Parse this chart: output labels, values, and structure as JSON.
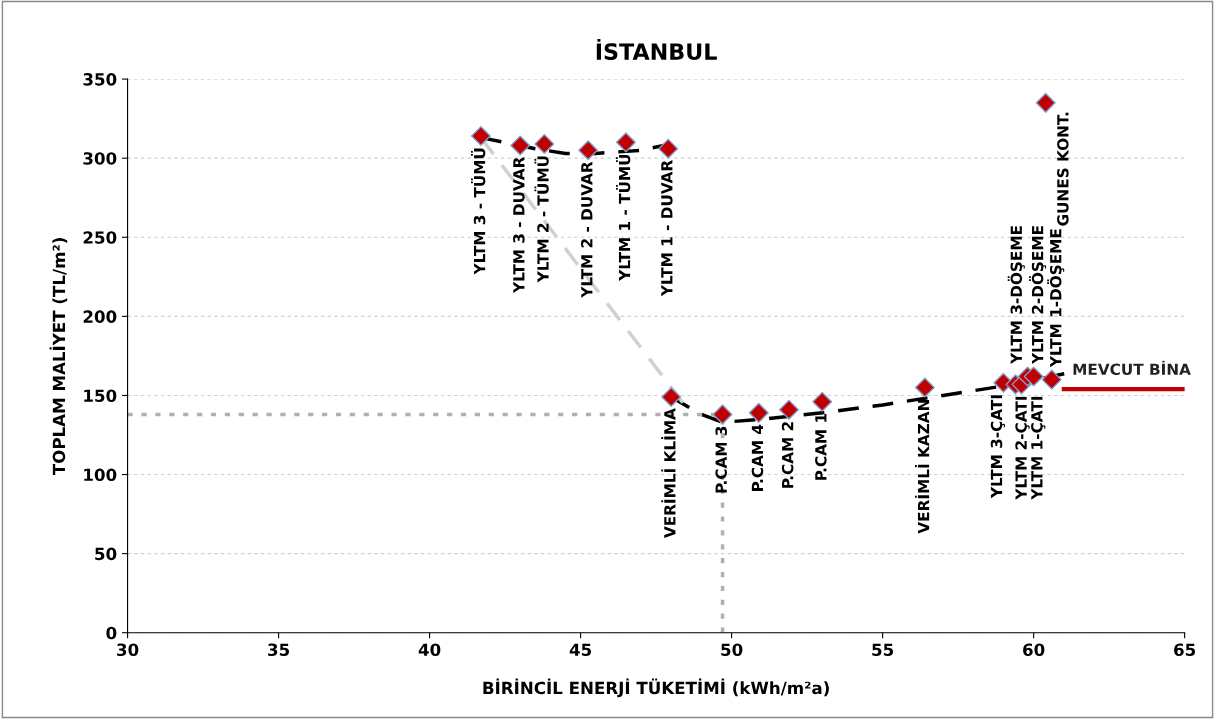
{
  "chart_data": {
    "type": "scatter",
    "title": "İSTANBUL",
    "xlabel": "BİRİNCİL ENERJİ TÜKETİMİ (kWh/m²a)",
    "ylabel": "TOPLAM MALİYET (TL/m²)",
    "xlim": [
      30,
      65
    ],
    "xticks": [
      30,
      35,
      40,
      45,
      50,
      55,
      60,
      65
    ],
    "ylim": [
      0,
      350
    ],
    "yticks": [
      0,
      50,
      100,
      150,
      200,
      250,
      300,
      350
    ],
    "grid": "y",
    "series": [
      {
        "type": "line",
        "color": "#000000",
        "line_style": "dashed",
        "marker": "none",
        "x": [
          41.7,
          43.5,
          44.5,
          45.5,
          47.0,
          48.0
        ],
        "values": [
          313,
          306,
          303,
          303,
          305,
          309
        ]
      },
      {
        "type": "line",
        "color": "#000000",
        "line_style": "dashed",
        "marker": "none",
        "x": [
          48.0,
          49.0,
          49.7,
          51.0,
          53.0,
          55.0,
          57.0,
          59.0,
          61.1
        ],
        "values": [
          149,
          138,
          133,
          135,
          139,
          144,
          150,
          156,
          164
        ]
      },
      {
        "type": "line",
        "color": "#d0d0d0",
        "line_style": "dashed",
        "marker": "none",
        "x": [
          41.7,
          48.6
        ],
        "values": [
          313,
          140
        ]
      },
      {
        "type": "line",
        "color": "#b0b0b0",
        "line_style": "dotted",
        "marker": "none",
        "x": [
          30,
          49.7
        ],
        "values": [
          138,
          138
        ]
      },
      {
        "type": "line",
        "color": "#b0b0b0",
        "line_style": "dotted",
        "marker": "none",
        "x": [
          49.7,
          49.7
        ],
        "values": [
          0,
          138
        ]
      },
      {
        "type": "line",
        "name": "MEVCUT BİNA",
        "color": "#c00000",
        "line_style": "solid",
        "marker": "none",
        "x": [
          61.0,
          65.0
        ],
        "values": [
          154,
          154
        ]
      },
      {
        "color": "#c00000",
        "marker": "diamond",
        "x": [
          41.7,
          43.0,
          43.8,
          45.25,
          46.5,
          47.9,
          48.0,
          49.7,
          50.9,
          51.9,
          53.0,
          56.4,
          59.0,
          59.4,
          59.6,
          59.8,
          60.0,
          60.6,
          60.4
        ],
        "values": [
          314,
          308,
          309,
          305,
          310,
          306,
          149,
          138,
          139,
          141,
          146,
          155,
          158,
          157,
          157,
          162,
          162,
          160,
          335
        ]
      }
    ],
    "annotations": [
      {
        "text": "YLTM 3 - TÜMÜ",
        "x": 41.7,
        "y": 314
      },
      {
        "text": "YLTM 3 - DUVAR",
        "x": 43.0,
        "y": 308
      },
      {
        "text": "YLTM 2 - TÜMÜ",
        "x": 43.8,
        "y": 309
      },
      {
        "text": "YLTM 2 - DUVAR",
        "x": 45.25,
        "y": 305
      },
      {
        "text": "YLTM 1 - TÜMÜ",
        "x": 46.5,
        "y": 310
      },
      {
        "text": "YLTM 1 - DUVAR",
        "x": 47.9,
        "y": 306
      },
      {
        "text": "VERİMLİ KLİMA",
        "x": 48.0,
        "y": 149
      },
      {
        "text": "P.CAM 3",
        "x": 49.7,
        "y": 138
      },
      {
        "text": "P.CAM 4",
        "x": 50.9,
        "y": 139
      },
      {
        "text": "P.CAM 2",
        "x": 51.9,
        "y": 141
      },
      {
        "text": "P.CAM 1",
        "x": 53.0,
        "y": 146
      },
      {
        "text": "VERİMLİ KAZAN",
        "x": 56.4,
        "y": 155
      },
      {
        "text": "YLTM 3-ÇATI",
        "x": 59.0,
        "y": 158
      },
      {
        "text": "YLTM 2-ÇATI",
        "x": 59.4,
        "y": 157
      },
      {
        "text": "YLTM 1-ÇATI",
        "x": 59.6,
        "y": 157
      },
      {
        "text": "YLTM 3-DÖŞEME",
        "x": 59.8,
        "y": 162
      },
      {
        "text": "YLTM 2-DÖŞEME",
        "x": 60.0,
        "y": 162
      },
      {
        "text": "YLTM 1-DÖŞEME",
        "x": 60.6,
        "y": 160
      },
      {
        "text": "GUNES KONT.",
        "x": 60.4,
        "y": 335
      }
    ]
  }
}
